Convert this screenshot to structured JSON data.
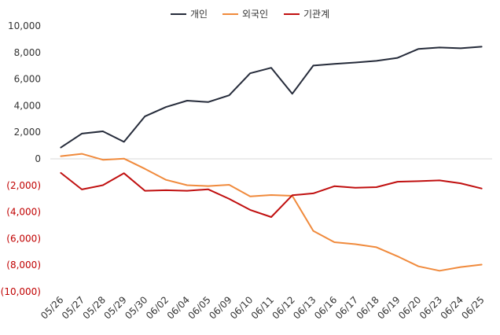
{
  "chart_data": {
    "type": "line",
    "categories": [
      "05/26",
      "05/27",
      "05/28",
      "05/29",
      "05/30",
      "06/02",
      "06/04",
      "06/05",
      "06/09",
      "06/10",
      "06/11",
      "06/12",
      "06/13",
      "06/16",
      "06/17",
      "06/18",
      "06/19",
      "06/20",
      "06/23",
      "06/24",
      "06/25"
    ],
    "series": [
      {
        "name": "개인",
        "color": "#252b3a",
        "values": [
          850,
          1900,
          2070,
          1280,
          3200,
          3900,
          4380,
          4270,
          4780,
          6440,
          6850,
          4900,
          7020,
          7150,
          7250,
          7370,
          7600,
          8270,
          8380,
          8320,
          8440
        ]
      },
      {
        "name": "외국인",
        "color": "#f08a3c",
        "values": [
          200,
          380,
          -70,
          20,
          -750,
          -1580,
          -1980,
          -2050,
          -1950,
          -2820,
          -2720,
          -2780,
          -5420,
          -6270,
          -6420,
          -6650,
          -7330,
          -8090,
          -8420,
          -8140,
          -7960
        ]
      },
      {
        "name": "기관계",
        "color": "#c00f0f",
        "values": [
          -1060,
          -2300,
          -1980,
          -1080,
          -2400,
          -2360,
          -2400,
          -2290,
          -3010,
          -3840,
          -4380,
          -2740,
          -2600,
          -2060,
          -2180,
          -2130,
          -1720,
          -1680,
          -1620,
          -1840,
          -2230
        ]
      }
    ],
    "y_ticks": [
      "10,000",
      "8,000",
      "6,000",
      "4,000",
      "2,000",
      "0",
      "(2,000)",
      "(4,000)",
      "(6,000)",
      "(8,000)",
      "(10,000)"
    ],
    "ylim": [
      -10000,
      10000
    ],
    "negative_label_color": "#c00000",
    "positive_label_color": "#333333",
    "legend_position": "top-center",
    "grid": false
  }
}
